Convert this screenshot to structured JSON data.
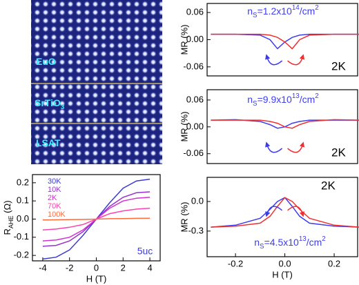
{
  "image": {
    "labels": [
      [
        "EuO"
      ],
      [
        "SrTiO",
        "3"
      ],
      [
        "LSAT"
      ]
    ]
  },
  "chart_data": [
    {
      "type": "line",
      "xlabel": "H (T)",
      "ylabel": [
        "R",
        "AHE",
        " (Ω)"
      ],
      "annotation": "5uc",
      "xlim": [
        -4.77,
        4.77
      ],
      "ylim": [
        -0.23,
        0.245
      ],
      "xticks": [
        -4,
        -2,
        0,
        2,
        4
      ],
      "yticks": [
        0.2,
        0.1,
        {
          "value": 0,
          "label": "0.0"
        },
        -0.1,
        -0.2
      ],
      "x": [
        -4,
        -3,
        -2,
        -1,
        -0.5,
        0,
        0.5,
        1,
        2,
        3,
        4
      ],
      "series": [
        {
          "name": "30K",
          "color": "#3a3ad0",
          "values": [
            -0.22,
            -0.21,
            -0.17,
            -0.09,
            -0.045,
            0,
            0.045,
            0.09,
            0.17,
            0.21,
            0.22
          ]
        },
        {
          "name": "10K",
          "color": "#9a2fd0",
          "values": [
            -0.15,
            -0.145,
            -0.12,
            -0.07,
            -0.035,
            0,
            0.035,
            0.07,
            0.12,
            0.145,
            0.15
          ]
        },
        {
          "name": "2K",
          "color": "#d030d0",
          "values": [
            -0.12,
            -0.115,
            -0.1,
            -0.06,
            -0.03,
            0,
            0.03,
            0.06,
            0.1,
            0.115,
            0.12
          ]
        },
        {
          "name": "70K",
          "color": "#ff40b0",
          "values": [
            -0.06,
            -0.055,
            -0.045,
            -0.03,
            -0.015,
            0,
            0.015,
            0.03,
            0.045,
            0.055,
            0.06
          ]
        },
        {
          "name": "100K",
          "color": "#ff6a3a",
          "values": [
            -0.005,
            -0.004,
            -0.003,
            -0.002,
            -0.001,
            0,
            0.001,
            0.002,
            0.003,
            0.004,
            0.005
          ]
        }
      ]
    },
    {
      "type": "line",
      "ylabel": "MR (%)",
      "label": "2K",
      "annotation": [
        "n",
        "S",
        "=1.2x10",
        "14",
        "/cm",
        "2"
      ],
      "xlim": [
        -0.315,
        0.295
      ],
      "ylim": [
        -0.08,
        0.08
      ],
      "yticks": [
        0.06,
        {
          "value": 0,
          "label": "0.00"
        },
        -0.06
      ],
      "x": [
        -0.3,
        -0.2,
        -0.1,
        -0.06,
        -0.03,
        0,
        0.03,
        0.06,
        0.1,
        0.2,
        0.3
      ],
      "series": [
        {
          "color": "#3c3cf0",
          "values": [
            0.012,
            0.012,
            0.01,
            0.0,
            -0.02,
            -0.005,
            0.005,
            0.01,
            0.012,
            0.012,
            0.012
          ]
        },
        {
          "color": "#f03030",
          "values": [
            0.012,
            0.012,
            0.012,
            0.01,
            0.005,
            -0.005,
            -0.02,
            0.0,
            0.01,
            0.012,
            0.012
          ]
        }
      ]
    },
    {
      "type": "line",
      "ylabel": "MR (%)",
      "label": "2K",
      "annotation": [
        "n",
        "S",
        "=9.9x10",
        "13",
        "/cm",
        "2"
      ],
      "xlim": [
        -0.315,
        0.295
      ],
      "ylim": [
        -0.082,
        0.083
      ],
      "yticks": [
        0.06,
        {
          "value": 0,
          "label": "0.00"
        },
        -0.06
      ],
      "x": [
        -0.3,
        -0.2,
        -0.1,
        -0.06,
        -0.03,
        0,
        0.03,
        0.06,
        0.1,
        0.2,
        0.3
      ],
      "series": [
        {
          "color": "#3c3cf0",
          "values": [
            0.015,
            0.016,
            0.012,
            0.005,
            -0.003,
            0.0,
            0.008,
            0.012,
            0.015,
            0.015,
            0.015
          ]
        },
        {
          "color": "#f03030",
          "values": [
            0.015,
            0.015,
            0.015,
            0.012,
            0.008,
            0.0,
            -0.003,
            0.005,
            0.012,
            0.016,
            0.015
          ]
        }
      ]
    },
    {
      "type": "line",
      "xlabel": "H (T)",
      "ylabel": "MR (%)",
      "label": "2K",
      "annotation": [
        "n",
        "S",
        "=4.5x10",
        "13",
        "/cm",
        "2"
      ],
      "xlim": [
        -0.315,
        0.295
      ],
      "ylim": [
        -0.56,
        0.245
      ],
      "xticks": [
        -0.2,
        {
          "value": 0,
          "label": "0.0"
        },
        0.2
      ],
      "yticks": [
        {
          "value": 0,
          "label": "0.0"
        },
        -0.3
      ],
      "x": [
        -0.3,
        -0.2,
        -0.1,
        -0.06,
        -0.03,
        0,
        0.03,
        0.06,
        0.1,
        0.2,
        0.3
      ],
      "series": [
        {
          "color": "#3c3cf0",
          "values": [
            -0.26,
            -0.24,
            -0.17,
            -0.08,
            0.0,
            0.04,
            -0.05,
            -0.15,
            -0.22,
            -0.25,
            -0.26
          ]
        },
        {
          "color": "#f03030",
          "values": [
            -0.26,
            -0.25,
            -0.22,
            -0.15,
            -0.05,
            0.04,
            0.0,
            -0.08,
            -0.17,
            -0.24,
            -0.26
          ]
        }
      ]
    }
  ]
}
